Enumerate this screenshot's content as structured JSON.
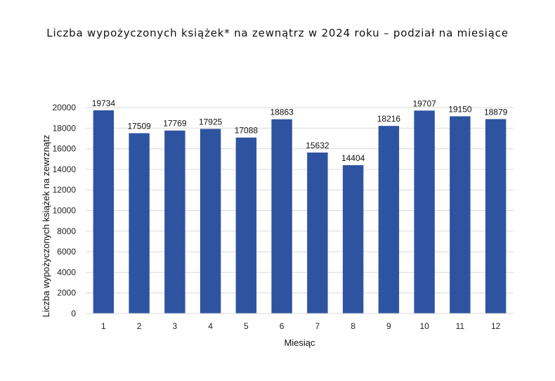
{
  "title": "Liczba wypożyczonych książek* na zewnątrz w 2024 roku – podział na miesiące",
  "chart_data": {
    "type": "bar",
    "title": "Liczba wypożyczonych książek* na zewnątrz w 2024 roku – podział na miesiące",
    "xlabel": "Miesiąc",
    "ylabel": "Liczba wypożyczonych książek na zewrznątz",
    "categories": [
      "1",
      "2",
      "3",
      "4",
      "5",
      "6",
      "7",
      "8",
      "9",
      "10",
      "11",
      "12"
    ],
    "values": [
      19734,
      17509,
      17769,
      17925,
      17088,
      18863,
      15632,
      14404,
      18216,
      19707,
      19150,
      18879
    ],
    "ylim": [
      0,
      20000
    ],
    "yticks": [
      0,
      2000,
      4000,
      6000,
      8000,
      10000,
      12000,
      14000,
      16000,
      18000,
      20000
    ],
    "grid": true,
    "legend": "none",
    "bar_color": "#2E54A1",
    "grid_color": "#D9D9D9"
  }
}
